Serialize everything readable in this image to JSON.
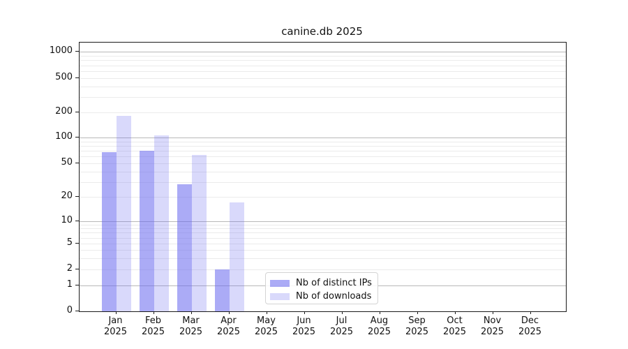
{
  "title": "canine.db 2025",
  "colors": {
    "bar_dark": "rgba(102,102,238,0.55)",
    "bar_light": "rgba(102,102,238,0.25)",
    "grid_major": "#b8b8b8",
    "grid_minor": "#ebebeb",
    "spine": "#1a1a1a"
  },
  "legend": {
    "items": [
      {
        "label": "Nb of distinct IPs",
        "color": "rgba(102,102,238,0.55)"
      },
      {
        "label": "Nb of downloads",
        "color": "rgba(102,102,238,0.25)"
      }
    ]
  },
  "x_axis": {
    "months": [
      "Jan",
      "Feb",
      "Mar",
      "Apr",
      "May",
      "Jun",
      "Jul",
      "Aug",
      "Sep",
      "Oct",
      "Nov",
      "Dec"
    ],
    "year": "2025"
  },
  "y_axis": {
    "tick_labels": [
      "0",
      "1",
      "2",
      "5",
      "10",
      "20",
      "50",
      "100",
      "200",
      "500",
      "1000"
    ],
    "tick_values": [
      0,
      1,
      2,
      5,
      10,
      20,
      50,
      100,
      200,
      500,
      1000
    ]
  },
  "chart_data": {
    "type": "bar",
    "title": "canine.db 2025",
    "categories": [
      "Jan 2025",
      "Feb 2025",
      "Mar 2025",
      "Apr 2025",
      "May 2025",
      "Jun 2025",
      "Jul 2025",
      "Aug 2025",
      "Sep 2025",
      "Oct 2025",
      "Nov 2025",
      "Dec 2025"
    ],
    "series": [
      {
        "name": "Nb of distinct IPs",
        "values": [
          67,
          70,
          28,
          2,
          0,
          0,
          0,
          0,
          0,
          0,
          0,
          0
        ]
      },
      {
        "name": "Nb of downloads",
        "values": [
          180,
          106,
          63,
          17,
          0,
          0,
          0,
          0,
          0,
          0,
          0,
          0
        ]
      }
    ],
    "xlabel": "",
    "ylabel": "",
    "yscale": "symlog",
    "yticks": [
      0,
      1,
      2,
      5,
      10,
      20,
      50,
      100,
      200,
      500,
      1000
    ],
    "ylim": [
      0,
      1100
    ],
    "grid": true,
    "legend_position": "lower center"
  }
}
